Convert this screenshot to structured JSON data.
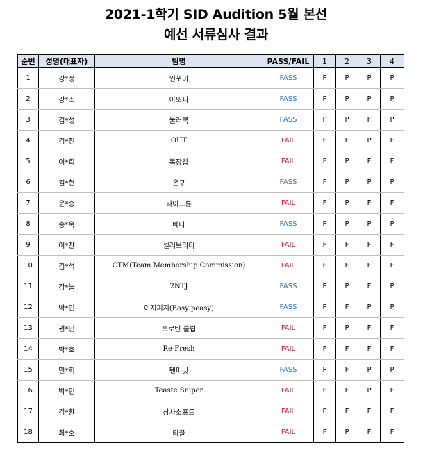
{
  "document": {
    "title": "2021-1학기 SID Audition 5월 본선",
    "subtitle": "예선 서류심사 결과"
  },
  "table": {
    "headers": [
      "순번",
      "성명(대표자)",
      "팀명",
      "PASS/FAIL",
      "1",
      "2",
      "3",
      "4"
    ],
    "colors": {
      "pass": "#2e75b6",
      "fail": "#e3142b",
      "header_bg": "#dde3ef"
    },
    "rows": [
      {
        "no": "1",
        "name": "강*정",
        "team": "인포미",
        "result": "PASS",
        "judges": [
          "P",
          "P",
          "P",
          "P"
        ]
      },
      {
        "no": "2",
        "name": "강*소",
        "team": "아또피",
        "result": "PASS",
        "judges": [
          "P",
          "P",
          "P",
          "P"
        ]
      },
      {
        "no": "3",
        "name": "김*성",
        "team": "눌러쿡",
        "result": "PASS",
        "judges": [
          "P",
          "P",
          "F",
          "P"
        ]
      },
      {
        "no": "4",
        "name": "김*진",
        "team": "OUT",
        "result": "FAIL",
        "judges": [
          "F",
          "F",
          "P",
          "F"
        ]
      },
      {
        "no": "5",
        "name": "이*희",
        "team": "목장갑",
        "result": "FAIL",
        "judges": [
          "F",
          "P",
          "F",
          "F"
        ]
      },
      {
        "no": "6",
        "name": "김*현",
        "team": "온구",
        "result": "PASS",
        "judges": [
          "F",
          "P",
          "P",
          "P"
        ]
      },
      {
        "no": "7",
        "name": "윤*승",
        "team": "라이프튠",
        "result": "FAIL",
        "judges": [
          "F",
          "P",
          "F",
          "F"
        ]
      },
      {
        "no": "8",
        "name": "송*욱",
        "team": "베다",
        "result": "PASS",
        "judges": [
          "P",
          "P",
          "P",
          "P"
        ]
      },
      {
        "no": "9",
        "name": "이*찬",
        "team": "셀러브리티",
        "result": "FAIL",
        "judges": [
          "F",
          "F",
          "F",
          "F"
        ]
      },
      {
        "no": "10",
        "name": "김*석",
        "team": "CTM(Team Membership Commission)",
        "result": "FAIL",
        "judges": [
          "F",
          "F",
          "F",
          "F"
        ]
      },
      {
        "no": "11",
        "name": "강*늘",
        "team": "2NTJ",
        "result": "PASS",
        "judges": [
          "P",
          "P",
          "F",
          "P"
        ]
      },
      {
        "no": "12",
        "name": "박*민",
        "team": "이지피지(Easy peasy)",
        "result": "PASS",
        "judges": [
          "P",
          "F",
          "P",
          "P"
        ]
      },
      {
        "no": "13",
        "name": "권*민",
        "team": "프로틴 클럽",
        "result": "FAIL",
        "judges": [
          "F",
          "P",
          "F",
          "F"
        ]
      },
      {
        "no": "14",
        "name": "박*호",
        "team": "Re-Fresh",
        "result": "FAIL",
        "judges": [
          "F",
          "F",
          "F",
          "F"
        ]
      },
      {
        "no": "15",
        "name": "민*희",
        "team": "텐미닛",
        "result": "PASS",
        "judges": [
          "P",
          "F",
          "P",
          "P"
        ]
      },
      {
        "no": "16",
        "name": "박*민",
        "team": "Teaste Sniper",
        "result": "FAIL",
        "judges": [
          "F",
          "F",
          "P",
          "F"
        ]
      },
      {
        "no": "17",
        "name": "김*환",
        "team": "삼사소프트",
        "result": "FAIL",
        "judges": [
          "P",
          "F",
          "F",
          "F"
        ]
      },
      {
        "no": "18",
        "name": "최*호",
        "team": "티끌",
        "result": "FAIL",
        "judges": [
          "F",
          "P",
          "F",
          "F"
        ]
      }
    ]
  }
}
